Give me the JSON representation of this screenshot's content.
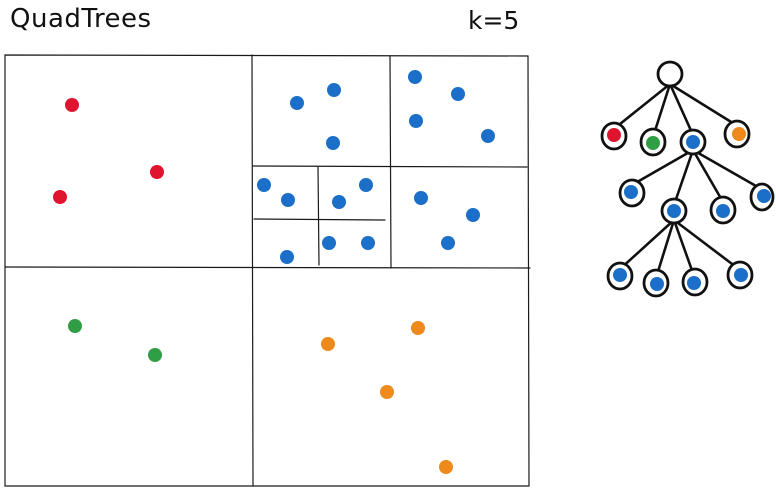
{
  "title": "QuadTrees",
  "k_label": "k=5",
  "colors": {
    "red": "#e0142f",
    "green": "#2f9e44",
    "blue": "#1c6fc8",
    "orange": "#ee8a1c",
    "line": "#1a1a1a",
    "root_fill": "#ffffff"
  },
  "legend": {
    "note": ""
  }
}
